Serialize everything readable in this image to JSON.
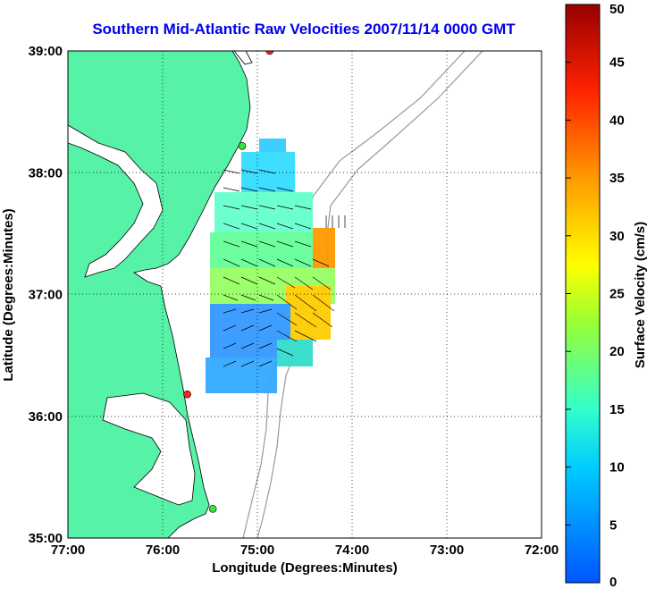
{
  "title": "Southern Mid-Atlantic Raw Velocities 2007/11/14 0000 GMT",
  "xlabel": "Longitude (Degrees:Minutes)",
  "ylabel": "Latitude (Degrees:Minutes)",
  "colorbar_label": "Surface Velocity (cm/s)",
  "x_ticks": [
    {
      "value": -77,
      "label": "77:00"
    },
    {
      "value": -76,
      "label": "76:00"
    },
    {
      "value": -75,
      "label": "75:00"
    },
    {
      "value": -74,
      "label": "74:00"
    },
    {
      "value": -73,
      "label": "73:00"
    },
    {
      "value": -72,
      "label": "72:00"
    }
  ],
  "y_ticks": [
    {
      "value": 35,
      "label": "35:00"
    },
    {
      "value": 36,
      "label": "36:00"
    },
    {
      "value": 37,
      "label": "37:00"
    },
    {
      "value": 38,
      "label": "38:00"
    },
    {
      "value": 39,
      "label": "39:00"
    }
  ],
  "colorbar_ticks": [
    {
      "value": 0,
      "label": "0"
    },
    {
      "value": 5,
      "label": "5"
    },
    {
      "value": 10,
      "label": "10"
    },
    {
      "value": 15,
      "label": "15"
    },
    {
      "value": 20,
      "label": "20"
    },
    {
      "value": 25,
      "label": "25"
    },
    {
      "value": 30,
      "label": "30"
    },
    {
      "value": 35,
      "label": "35"
    },
    {
      "value": 40,
      "label": "40"
    },
    {
      "value": 45,
      "label": "45"
    },
    {
      "value": 50,
      "label": "50"
    }
  ],
  "colors": {
    "land": "#55f2a8",
    "water": "#ffffff",
    "title": "#0000ee",
    "isobath": "#999999",
    "station_red": "#ff2020",
    "station_green": "#40e040"
  },
  "chart_data": {
    "type": "heatmap",
    "x_range": [
      -77,
      -72
    ],
    "y_range": [
      35,
      39
    ],
    "color_range": [
      0,
      50
    ],
    "grid": true,
    "stations": [
      {
        "lon": -74.87,
        "lat": 39.0,
        "color": "red"
      },
      {
        "lon": -75.16,
        "lat": 38.22,
        "color": "green"
      },
      {
        "lon": -75.74,
        "lat": 36.18,
        "color": "red"
      },
      {
        "lon": -75.47,
        "lat": 35.24,
        "color": "green"
      }
    ]
  }
}
